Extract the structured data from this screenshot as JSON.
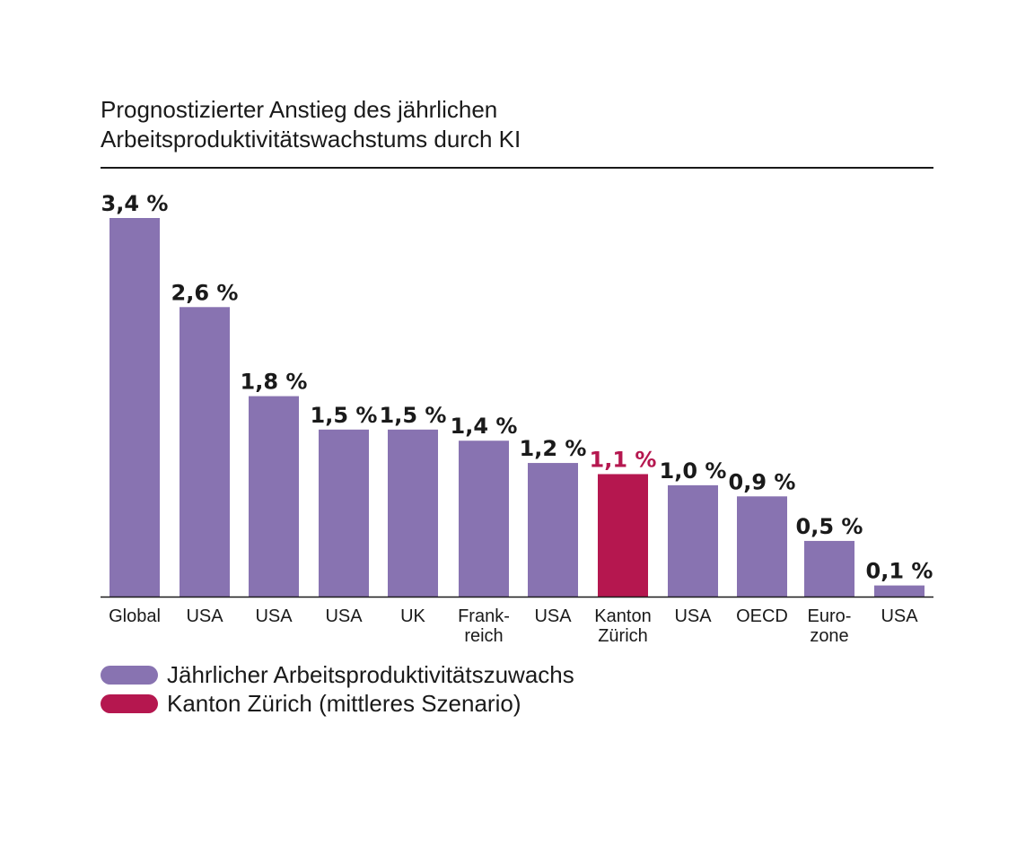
{
  "chart_data": {
    "type": "bar",
    "title_line1": "Prognostizierter Anstieg des jährlichen",
    "title_line2": "Arbeitsproduktivitätswachstums durch KI",
    "categories": [
      [
        "Global"
      ],
      [
        "USA"
      ],
      [
        "USA"
      ],
      [
        "USA"
      ],
      [
        "UK"
      ],
      [
        "Frank-",
        "reich"
      ],
      [
        "USA"
      ],
      [
        "Kanton",
        "Zürich"
      ],
      [
        "USA"
      ],
      [
        "OECD"
      ],
      [
        "Euro-",
        "zone"
      ],
      [
        "USA"
      ]
    ],
    "values": [
      3.4,
      2.6,
      1.8,
      1.5,
      1.5,
      1.4,
      1.2,
      1.1,
      1.0,
      0.9,
      0.5,
      0.1
    ],
    "value_labels": [
      "3,4 %",
      "2,6 %",
      "1,8 %",
      "1,5 %",
      "1,5 %",
      "1,4 %",
      "1,2 %",
      "1,1 %",
      "1,0 %",
      "0,9 %",
      "0,5 %",
      "0,1 %"
    ],
    "series_index": [
      0,
      0,
      0,
      0,
      0,
      0,
      0,
      1,
      0,
      0,
      0,
      0
    ],
    "ylim": [
      0,
      3.4
    ],
    "grid": false,
    "legend_position": "bottom-left",
    "series": [
      {
        "name": "Jährlicher Arbeitsproduktivitätszuwachs",
        "color": "#8873b1"
      },
      {
        "name": "Kanton Zürich (mittleres Szenario)",
        "color": "#b5174f"
      }
    ]
  }
}
